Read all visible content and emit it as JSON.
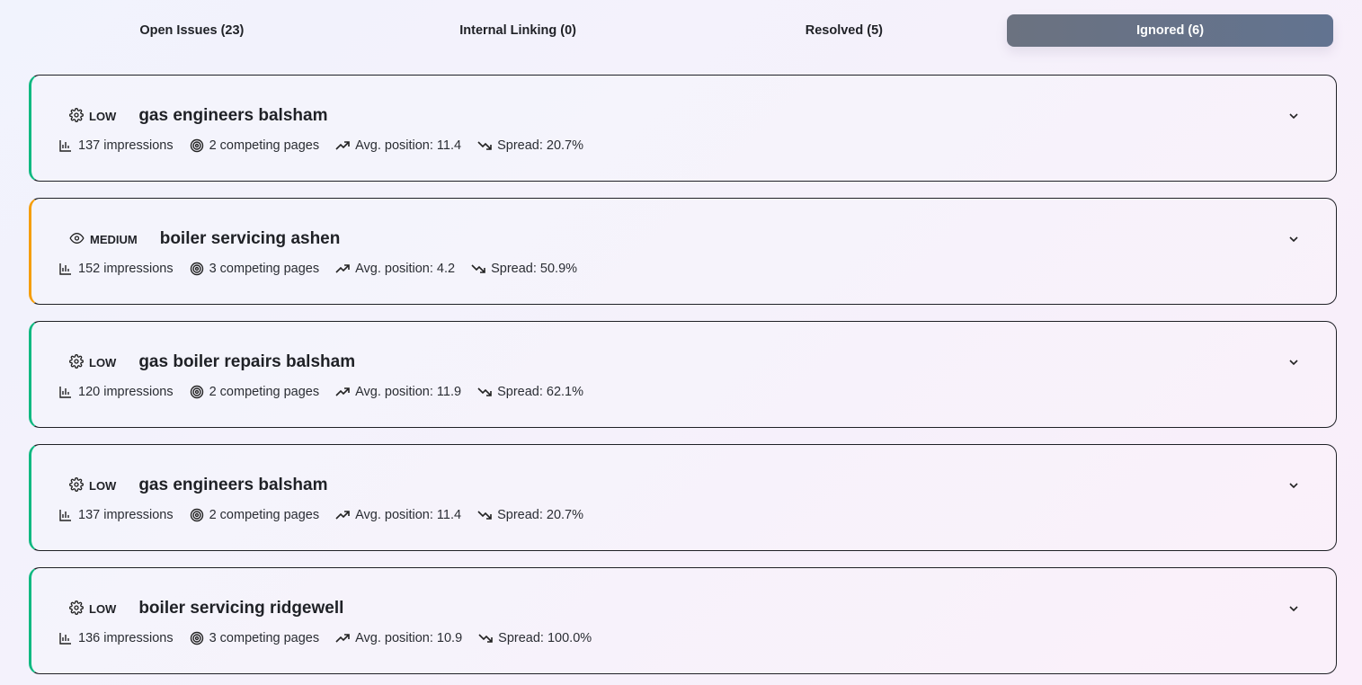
{
  "tabs": [
    {
      "label": "Open Issues (23)",
      "active": false
    },
    {
      "label": "Internal Linking (0)",
      "active": false
    },
    {
      "label": "Resolved (5)",
      "active": false
    },
    {
      "label": "Ignored (6)",
      "active": true
    }
  ],
  "colors": {
    "low": "#10b981",
    "medium": "#f59e0b",
    "active_tab": "#64748b"
  },
  "issues": [
    {
      "severity": "LOW",
      "severity_icon": "gear-icon",
      "keyword": "gas engineers balsham",
      "impressions": "137 impressions",
      "competing": "2 competing pages",
      "avg_position": "Avg. position: 11.4",
      "spread": "Spread: 20.7%"
    },
    {
      "severity": "MEDIUM",
      "severity_icon": "eye-icon",
      "keyword": "boiler servicing ashen",
      "impressions": "152 impressions",
      "competing": "3 competing pages",
      "avg_position": "Avg. position: 4.2",
      "spread": "Spread: 50.9%"
    },
    {
      "severity": "LOW",
      "severity_icon": "gear-icon",
      "keyword": "gas boiler repairs balsham",
      "impressions": "120 impressions",
      "competing": "2 competing pages",
      "avg_position": "Avg. position: 11.9",
      "spread": "Spread: 62.1%"
    },
    {
      "severity": "LOW",
      "severity_icon": "gear-icon",
      "keyword": "gas engineers balsham",
      "impressions": "137 impressions",
      "competing": "2 competing pages",
      "avg_position": "Avg. position: 11.4",
      "spread": "Spread: 20.7%"
    },
    {
      "severity": "LOW",
      "severity_icon": "gear-icon",
      "keyword": "boiler servicing ridgewell",
      "impressions": "136 impressions",
      "competing": "3 competing pages",
      "avg_position": "Avg. position: 10.9",
      "spread": "Spread: 100.0%"
    }
  ]
}
